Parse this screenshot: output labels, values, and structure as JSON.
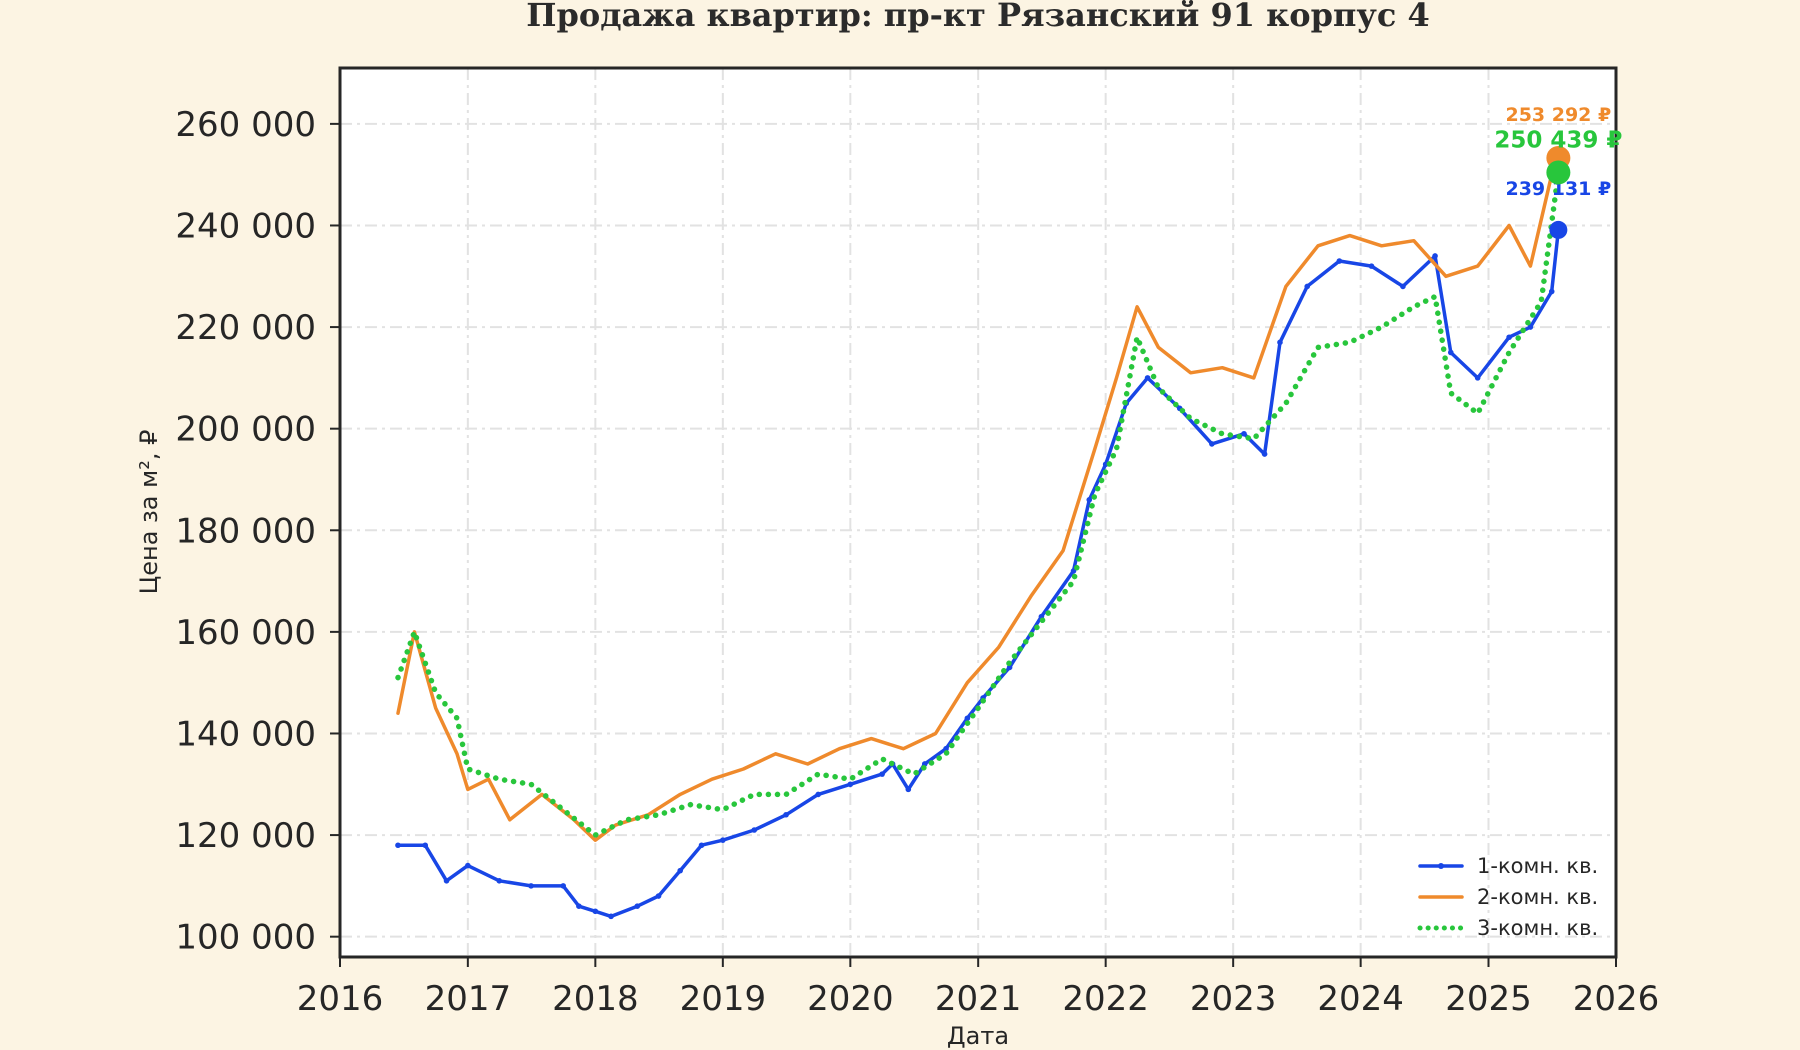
{
  "chart_data": {
    "type": "line",
    "title": "Продажа квартир: пр-кт Рязанский 91 корпус 4",
    "xlabel": "Дата",
    "ylabel": "Цена за м², ₽",
    "xlim": [
      "2016-01-01",
      "2026-01-01"
    ],
    "ylim": [
      96000,
      271000
    ],
    "x_ticks": [
      "2016",
      "2017",
      "2018",
      "2019",
      "2020",
      "2021",
      "2022",
      "2023",
      "2024",
      "2025",
      "2026"
    ],
    "y_ticks": [
      100000,
      120000,
      140000,
      160000,
      180000,
      200000,
      220000,
      240000,
      260000
    ],
    "y_tick_labels": [
      "100 000",
      "120 000",
      "140 000",
      "160 000",
      "180 000",
      "200 000",
      "220 000",
      "240 000",
      "260 000"
    ],
    "grid": true,
    "legend_position": "bottom-right",
    "series": [
      {
        "name": "1-комн. кв.",
        "color": "#1846e6",
        "style": "solid-markers",
        "last_label": "239 131 ₽",
        "last_value": 239131,
        "points": [
          [
            "2016-06-15",
            118000
          ],
          [
            "2016-09-01",
            118000
          ],
          [
            "2016-11-01",
            111000
          ],
          [
            "2017-01-01",
            114000
          ],
          [
            "2017-04-01",
            111000
          ],
          [
            "2017-07-01",
            110000
          ],
          [
            "2017-10-01",
            110000
          ],
          [
            "2017-11-15",
            106000
          ],
          [
            "2018-01-01",
            105000
          ],
          [
            "2018-02-15",
            104000
          ],
          [
            "2018-05-01",
            106000
          ],
          [
            "2018-07-01",
            108000
          ],
          [
            "2018-09-01",
            113000
          ],
          [
            "2018-11-01",
            118000
          ],
          [
            "2019-01-01",
            119000
          ],
          [
            "2019-04-01",
            121000
          ],
          [
            "2019-07-01",
            124000
          ],
          [
            "2019-10-01",
            128000
          ],
          [
            "2020-01-01",
            130000
          ],
          [
            "2020-04-01",
            132000
          ],
          [
            "2020-05-01",
            134000
          ],
          [
            "2020-06-15",
            129000
          ],
          [
            "2020-08-01",
            134000
          ],
          [
            "2020-10-01",
            137000
          ],
          [
            "2020-12-01",
            143000
          ],
          [
            "2021-01-15",
            147000
          ],
          [
            "2021-04-01",
            153000
          ],
          [
            "2021-07-01",
            163000
          ],
          [
            "2021-10-01",
            172000
          ],
          [
            "2021-11-15",
            186000
          ],
          [
            "2022-01-01",
            193000
          ],
          [
            "2022-03-01",
            205000
          ],
          [
            "2022-05-01",
            210000
          ],
          [
            "2022-08-01",
            204000
          ],
          [
            "2022-11-01",
            197000
          ],
          [
            "2023-02-01",
            199000
          ],
          [
            "2023-04-01",
            195000
          ],
          [
            "2023-05-15",
            217000
          ],
          [
            "2023-08-01",
            228000
          ],
          [
            "2023-11-01",
            233000
          ],
          [
            "2024-02-01",
            232000
          ],
          [
            "2024-05-01",
            228000
          ],
          [
            "2024-08-01",
            234000
          ],
          [
            "2024-09-15",
            215000
          ],
          [
            "2024-12-01",
            210000
          ],
          [
            "2025-03-01",
            218000
          ],
          [
            "2025-05-01",
            220000
          ],
          [
            "2025-07-01",
            227000
          ],
          [
            "2025-07-20",
            239131
          ]
        ]
      },
      {
        "name": "2-комн. кв.",
        "color": "#ef8a2c",
        "style": "solid",
        "last_label": "253 292 ₽",
        "last_value": 253292,
        "points": [
          [
            "2016-06-15",
            144000
          ],
          [
            "2016-08-01",
            160000
          ],
          [
            "2016-10-01",
            145000
          ],
          [
            "2016-12-01",
            136000
          ],
          [
            "2017-01-01",
            129000
          ],
          [
            "2017-03-01",
            131000
          ],
          [
            "2017-05-01",
            123000
          ],
          [
            "2017-08-01",
            128000
          ],
          [
            "2017-11-01",
            123000
          ],
          [
            "2018-01-01",
            119000
          ],
          [
            "2018-03-01",
            122000
          ],
          [
            "2018-06-01",
            124000
          ],
          [
            "2018-09-01",
            128000
          ],
          [
            "2018-12-01",
            131000
          ],
          [
            "2019-03-01",
            133000
          ],
          [
            "2019-06-01",
            136000
          ],
          [
            "2019-09-01",
            134000
          ],
          [
            "2019-12-01",
            137000
          ],
          [
            "2020-03-01",
            139000
          ],
          [
            "2020-06-01",
            137000
          ],
          [
            "2020-09-01",
            140000
          ],
          [
            "2020-12-01",
            150000
          ],
          [
            "2021-03-01",
            157000
          ],
          [
            "2021-06-01",
            167000
          ],
          [
            "2021-09-01",
            176000
          ],
          [
            "2021-12-01",
            196000
          ],
          [
            "2022-02-01",
            210000
          ],
          [
            "2022-04-01",
            224000
          ],
          [
            "2022-06-01",
            216000
          ],
          [
            "2022-09-01",
            211000
          ],
          [
            "2022-12-01",
            212000
          ],
          [
            "2023-03-01",
            210000
          ],
          [
            "2023-06-01",
            228000
          ],
          [
            "2023-09-01",
            236000
          ],
          [
            "2023-12-01",
            238000
          ],
          [
            "2024-03-01",
            236000
          ],
          [
            "2024-06-01",
            237000
          ],
          [
            "2024-09-01",
            230000
          ],
          [
            "2024-12-01",
            232000
          ],
          [
            "2025-03-01",
            240000
          ],
          [
            "2025-05-01",
            232000
          ],
          [
            "2025-07-01",
            250000
          ],
          [
            "2025-07-20",
            253292
          ]
        ]
      },
      {
        "name": "3-комн. кв.",
        "color": "#28c63c",
        "style": "dotted",
        "last_label": "250 439 ₽",
        "last_value": 250439,
        "points": [
          [
            "2016-06-15",
            151000
          ],
          [
            "2016-08-01",
            160000
          ],
          [
            "2016-10-01",
            148000
          ],
          [
            "2016-12-01",
            143000
          ],
          [
            "2017-01-01",
            133000
          ],
          [
            "2017-04-01",
            131000
          ],
          [
            "2017-07-01",
            130000
          ],
          [
            "2017-10-01",
            125000
          ],
          [
            "2018-01-01",
            120000
          ],
          [
            "2018-04-01",
            123000
          ],
          [
            "2018-07-01",
            124000
          ],
          [
            "2018-10-01",
            126000
          ],
          [
            "2019-01-01",
            125000
          ],
          [
            "2019-04-01",
            128000
          ],
          [
            "2019-07-01",
            128000
          ],
          [
            "2019-10-01",
            132000
          ],
          [
            "2020-01-01",
            131000
          ],
          [
            "2020-04-01",
            135000
          ],
          [
            "2020-07-01",
            132000
          ],
          [
            "2020-10-01",
            136000
          ],
          [
            "2021-01-01",
            145000
          ],
          [
            "2021-04-01",
            154000
          ],
          [
            "2021-07-01",
            162000
          ],
          [
            "2021-10-01",
            170000
          ],
          [
            "2021-12-01",
            187000
          ],
          [
            "2022-02-01",
            196000
          ],
          [
            "2022-04-01",
            218000
          ],
          [
            "2022-06-01",
            208000
          ],
          [
            "2022-09-01",
            202000
          ],
          [
            "2022-12-01",
            199000
          ],
          [
            "2023-03-01",
            198000
          ],
          [
            "2023-06-01",
            205000
          ],
          [
            "2023-09-01",
            216000
          ],
          [
            "2023-12-01",
            217000
          ],
          [
            "2024-03-01",
            220000
          ],
          [
            "2024-06-01",
            224000
          ],
          [
            "2024-08-01",
            226000
          ],
          [
            "2024-09-15",
            207000
          ],
          [
            "2024-12-01",
            203000
          ],
          [
            "2025-03-01",
            215000
          ],
          [
            "2025-06-01",
            225000
          ],
          [
            "2025-07-20",
            250439
          ]
        ]
      }
    ]
  }
}
